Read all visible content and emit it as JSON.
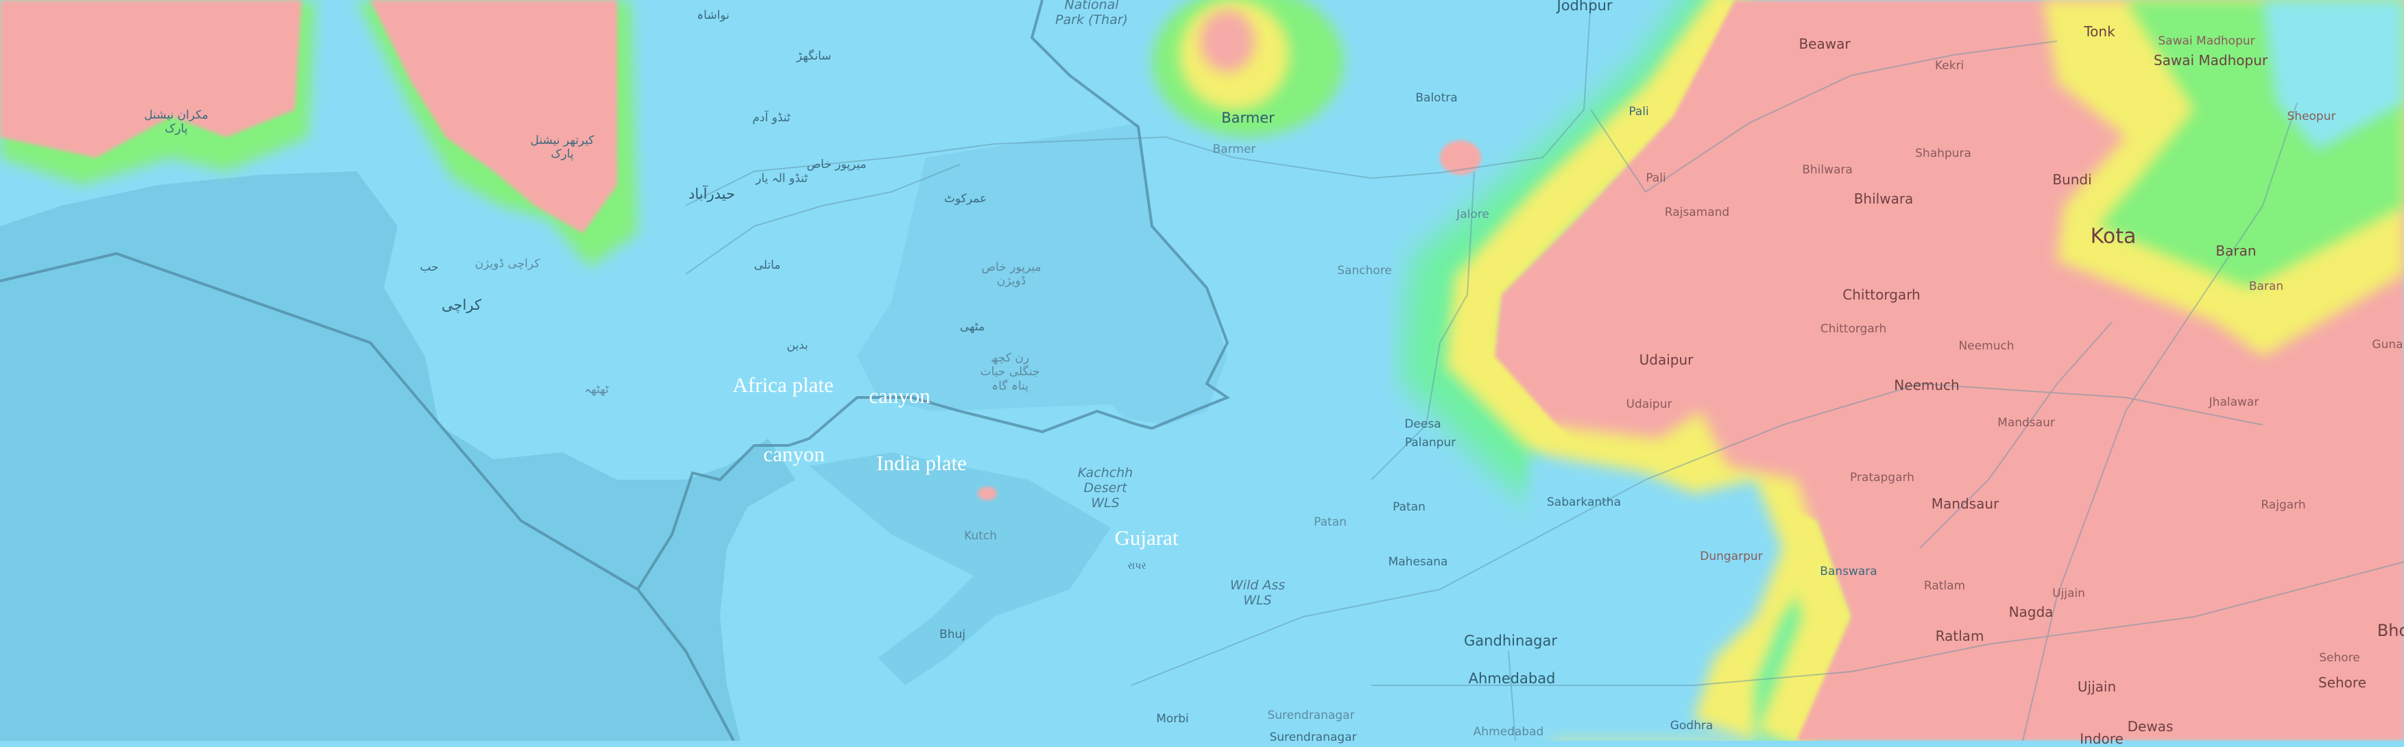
{
  "map": {
    "colors": {
      "low": "#8adcf6",
      "sea": "#78cbe6",
      "mid_green": "#7ef08a",
      "mid_yellow": "#f4f27a",
      "high": "#f5aaa8"
    },
    "annotations": [
      "Africa plate",
      "canyon",
      "canyon",
      "India plate",
      "Gujarat"
    ],
    "places": [
      "Jodhpur",
      "Barmer",
      "Barmer",
      "Balotra",
      "Pali",
      "Pali",
      "Jalore",
      "Sanchore",
      "Rajsamand",
      "Beawar",
      "Kekri",
      "Tonk",
      "Sawai Madhopur",
      "Sawai Madhopur",
      "Shahpura",
      "Bhilwara",
      "Bhilwara",
      "Bundi",
      "Kota",
      "Baran",
      "Baran",
      "Sheopur",
      "Chittorgarh",
      "Chittorgarh",
      "Udaipur",
      "Udaipur",
      "Neemuch",
      "Neemuch",
      "Mandsaur",
      "Mandsaur",
      "Pratapgarh",
      "Jhalawar",
      "Rajgarh",
      "Dungarpur",
      "Banswara",
      "Ratlam",
      "Ratlam",
      "Nagda",
      "Ujjain",
      "Ujjain",
      "Dewas",
      "Sehore",
      "Sehore",
      "Guna",
      "Bho",
      "Indore",
      "Godhra",
      "Ahmedabad",
      "Ahmedabad",
      "Gandhinagar",
      "Mahesana",
      "Patan",
      "Patan",
      "Deesa",
      "Palanpur",
      "Kutch",
      "Bhuj",
      "Morbi",
      "Surendranagar",
      "Surendranagar",
      "રાપર",
      "Sabarkantha"
    ],
    "italic_places": [
      "National\nPark (Thar)",
      "Kachchh\nDesert\nWLS",
      "Wild Ass\nWLS"
    ],
    "urdu_places": [
      "نواشاہ",
      "سانگھڑ",
      "ٹنڈو آدم",
      "میرپور خاص",
      "ٹنڈو الہ یار",
      "حیدرآباد",
      "عمرکوٹ",
      "ماتلی",
      "کراچی",
      "کراچی ڈویژن",
      "حب",
      "بدین",
      "ٹھٹھہ",
      "مٹھی",
      "رن کچھ\nجنگلی حیات\nپناہ گاہ",
      "مکران نیشنل\nپارک",
      "کیرتھر نیشنل\nپارک",
      "میرپور خاص\nڈویژن"
    ]
  }
}
